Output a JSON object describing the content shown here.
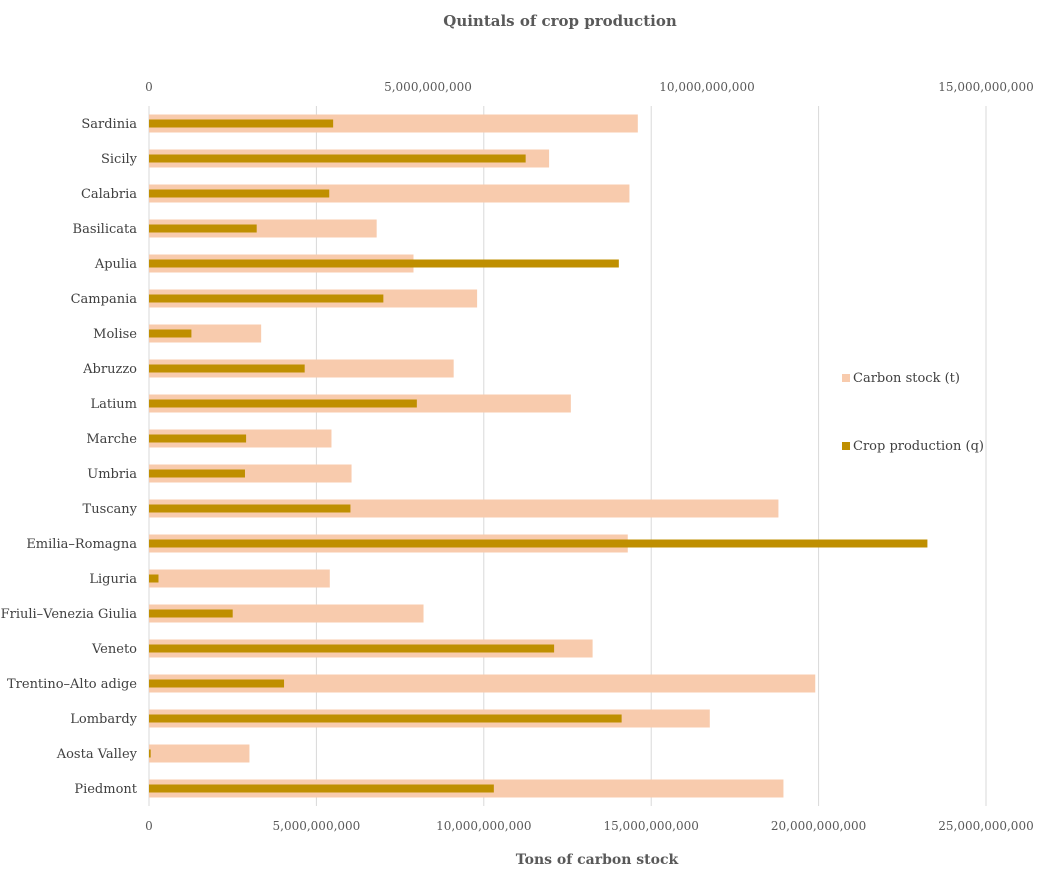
{
  "chart_data": {
    "type": "bar",
    "orientation": "horizontal",
    "title": "Quintals of crop production",
    "xlabel_bottom": "Tons of carbon stock",
    "categories": [
      "Sardinia",
      "Sicily",
      "Calabria",
      "Basilicata",
      "Apulia",
      "Campania",
      "Molise",
      "Abruzzo",
      "Latium",
      "Marche",
      "Umbria",
      "Tuscany",
      "Emilia–Romagna",
      "Liguria",
      "Friuli–Venezia Giulia",
      "Veneto",
      "Trentino–Alto adige",
      "Lombardy",
      "Aosta Valley",
      "Piedmont"
    ],
    "axes": {
      "bottom": {
        "min": 0,
        "max": 25000000000,
        "ticks": [
          0,
          5000000000,
          10000000000,
          15000000000,
          20000000000,
          25000000000
        ],
        "tick_labels": [
          "0",
          "5,000,000,000",
          "10,000,000,000",
          "15,000,000,000",
          "20,000,000,000",
          "25,000,000,000"
        ]
      },
      "top": {
        "min": 0,
        "max": 15000000000,
        "ticks": [
          0,
          5000000000,
          10000000000,
          15000000000
        ],
        "tick_labels": [
          "0",
          "5,000,000,000",
          "10,000,000,000",
          "15,000,000,000"
        ]
      }
    },
    "grid": true,
    "legend_position": "right",
    "series": [
      {
        "name": "Carbon stock (t)",
        "axis": "bottom",
        "color": "#f8cbad",
        "values": [
          14600000000,
          11950000000,
          14350000000,
          6800000000,
          7900000000,
          9800000000,
          3350000000,
          9100000000,
          12600000000,
          5450000000,
          6050000000,
          18800000000,
          14300000000,
          5400000000,
          8200000000,
          13250000000,
          19900000000,
          16750000000,
          3000000000,
          18950000000
        ]
      },
      {
        "name": "Crop production (q)",
        "axis": "top",
        "color": "#bf8f00",
        "values": [
          3300000000,
          6750000000,
          3230000000,
          1930000000,
          8420000000,
          4200000000,
          760000000,
          2790000000,
          4800000000,
          1740000000,
          1720000000,
          3610000000,
          13950000000,
          170000000,
          1500000000,
          7260000000,
          2420000000,
          8470000000,
          30000000,
          6180000000
        ]
      }
    ]
  }
}
